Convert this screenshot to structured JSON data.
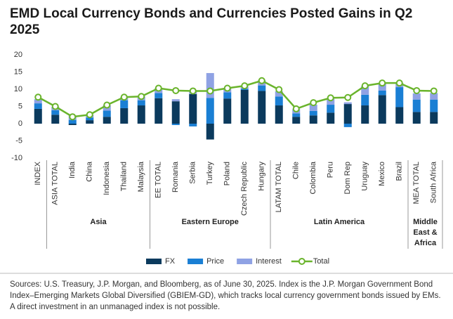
{
  "chart_data": {
    "type": "bar",
    "title": "EMD Local Currency Bonds and Currencies Posted Gains in Q2 2025",
    "category_groups": [
      {
        "name": null,
        "categories": [
          "INDEX"
        ]
      },
      {
        "name": "Asia",
        "categories": [
          "ASIA TOTAL",
          "India",
          "China",
          "Indonesia",
          "Thailand",
          "Malaysia"
        ]
      },
      {
        "name": "Eastern Europe",
        "categories": [
          "EE TOTAL",
          "Romania",
          "Serbia",
          "Turkey",
          "Poland",
          "Czech Republic",
          "Hungary"
        ]
      },
      {
        "name": "Latin America",
        "categories": [
          "LATAM TOTAL",
          "Chile",
          "Colombia",
          "Peru",
          "Dom Rep",
          "Uruguay",
          "Mexico",
          "Brazil"
        ]
      },
      {
        "name": "Middle East & Africa",
        "categories": [
          "MEA TOTAL",
          "South Africa"
        ]
      }
    ],
    "series": [
      {
        "name": "FX",
        "type": "bar",
        "color": "#0b3a5d",
        "values": [
          4.3,
          2.6,
          -0.4,
          1.0,
          2.0,
          4.5,
          5.3,
          7.4,
          6.5,
          8.6,
          -4.6,
          7.3,
          9.8,
          9.5,
          5.3,
          2.0,
          2.4,
          3.2,
          5.7,
          5.3,
          8.3,
          4.8,
          3.4,
          3.4
        ]
      },
      {
        "name": "Price",
        "type": "bar",
        "color": "#1a7fd4",
        "values": [
          1.6,
          1.3,
          1.1,
          0.8,
          1.8,
          2.3,
          1.5,
          1.5,
          -0.4,
          -0.8,
          7.5,
          1.8,
          0.3,
          1.6,
          2.6,
          1.0,
          1.3,
          2.3,
          -1.0,
          3.1,
          1.3,
          5.8,
          3.6,
          3.6
        ]
      },
      {
        "name": "Interest",
        "type": "bar",
        "color": "#8fa2e4",
        "values": [
          1.2,
          1.0,
          1.3,
          0.8,
          1.6,
          0.9,
          1.1,
          1.4,
          0.6,
          0.8,
          7.2,
          1.2,
          0.8,
          1.5,
          1.5,
          1.2,
          1.8,
          1.7,
          0.5,
          2.6,
          2.2,
          1.2,
          1.8,
          1.9
        ]
      },
      {
        "name": "Total",
        "type": "line",
        "color": "#6ab42c",
        "values": [
          7.7,
          5.0,
          2.0,
          2.6,
          5.4,
          7.7,
          7.9,
          10.3,
          9.6,
          9.5,
          9.5,
          10.3,
          11.0,
          12.5,
          9.9,
          4.3,
          6.1,
          7.5,
          7.6,
          11.0,
          11.8,
          11.8,
          9.6,
          9.5
        ]
      }
    ],
    "ylim": [
      -10,
      20
    ],
    "yticks": [
      -10,
      -5,
      0,
      5,
      10,
      15,
      20
    ],
    "grid": false,
    "source": "Sources: U.S. Treasury, J.P. Morgan, and Bloomberg, as of June 30, 2025. Index is the J.P. Morgan Government Bond Index–Emerging Markets Global Diversified (GBIEM-GD), which tracks local currency government bonds issued by EMs. A direct investment in an unmanaged index is not possible."
  }
}
